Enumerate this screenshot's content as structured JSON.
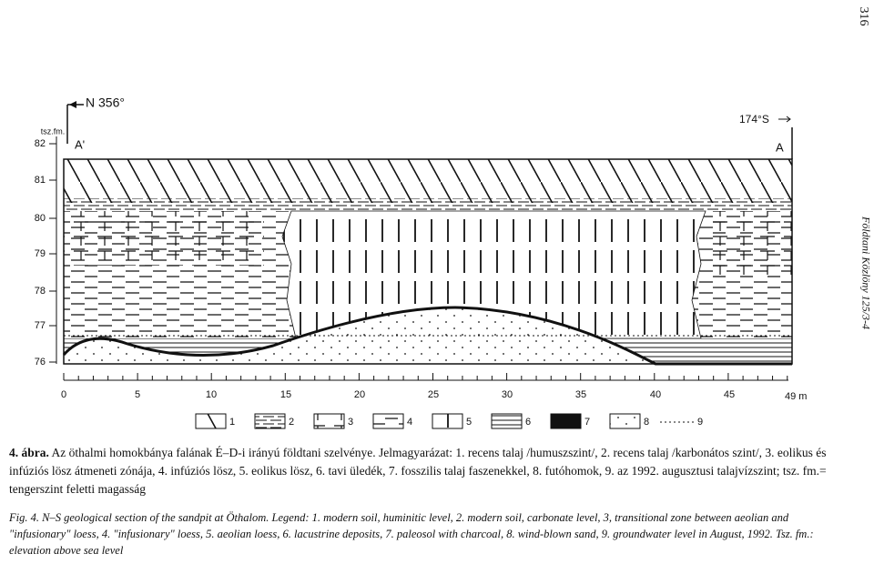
{
  "page_number": "316",
  "side_note": "Földtani Közlöny 125/3-4",
  "figure": {
    "y_axis_title": "tsz.fm.",
    "y_ticks": [
      "82",
      "81",
      "80",
      "79",
      "78",
      "77",
      "76"
    ],
    "x_ticks": [
      "0",
      "5",
      "10",
      "15",
      "20",
      "25",
      "30",
      "35",
      "40",
      "45",
      "49 m"
    ],
    "left_direction": "N 356°",
    "right_direction": "174°S",
    "left_point": "A'",
    "right_point": "A",
    "legend": [
      "1",
      "2",
      "3",
      "4",
      "5",
      "6",
      "7",
      "8",
      "9"
    ]
  },
  "caption_hu": {
    "label": "4. ábra.",
    "text": "Az öthalmi homokbánya falának É–D-i irányú földtani szelvénye. Jelmagyarázat: 1. recens talaj /humuszszint/, 2. recens talaj /karbonátos szint/, 3. eolikus és infúziós lösz átmeneti zónája, 4. infúziós lösz, 5. eolikus lösz, 6. tavi üledék, 7. fosszilis talaj faszenekkel, 8. futóhomok, 9. az 1992. augusztusi talajvízszint; tsz. fm.= tengerszint feletti magasság"
  },
  "caption_en": {
    "label": "Fig. 4.",
    "text": "N–S geological section of the sandpit at Öthalom. Legend: 1. modern soil, huminitic level, 2. modern soil, carbonate level, 3, transitional zone between aeolian and \"infusionary\" loess, 4. \"infusionary\" loess, 5. aeolian loess, 6. lacustrine deposits, 7. paleosol with charcoal, 8. wind-blown sand, 9. groundwater level in August, 1992. Tsz. fm.: elevation above sea level"
  }
}
